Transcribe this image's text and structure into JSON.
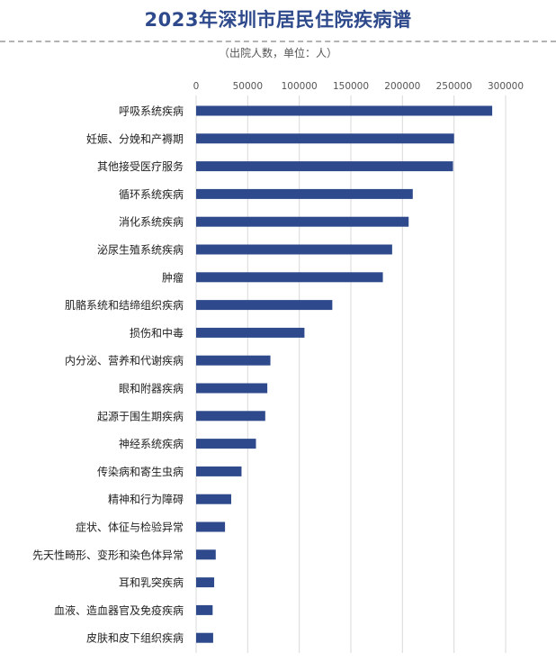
{
  "chart_data": {
    "type": "bar",
    "orientation": "horizontal",
    "title": "2023年深圳市居民住院疾病谱",
    "subtitle": "（出院人数，单位：人）",
    "xlim": [
      0,
      300000
    ],
    "x_ticks": [
      0,
      50000,
      100000,
      150000,
      200000,
      250000,
      300000
    ],
    "x_tick_labels": [
      "0",
      "50000",
      "100000",
      "150000",
      "200000",
      "250000",
      "300000"
    ],
    "grid": true,
    "bar_color": "#2e4a8c",
    "categories": [
      "呼吸系统疾病",
      "妊娠、分娩和产褥期",
      "其他接受医疗服务",
      "循环系统疾病",
      "消化系统疾病",
      "泌尿生殖系统疾病",
      "肿瘤",
      "肌骼系统和结缔组织疾病",
      "损伤和中毒",
      "内分泌、营养和代谢疾病",
      "眼和附器疾病",
      "起源于围生期疾病",
      "神经系统疾病",
      "传染病和寄生虫病",
      "精神和行为障碍",
      "症状、体征与检验异常",
      "先天性畸形、变形和染色体异常",
      "耳和乳突疾病",
      "血液、造血器官及免疫疾病",
      "皮肤和皮下组织疾病"
    ],
    "values": [
      287000,
      250000,
      249000,
      210000,
      206000,
      190000,
      181000,
      132000,
      105000,
      72000,
      69000,
      67000,
      58000,
      44000,
      34000,
      28000,
      19000,
      17500,
      16000,
      16500
    ]
  }
}
